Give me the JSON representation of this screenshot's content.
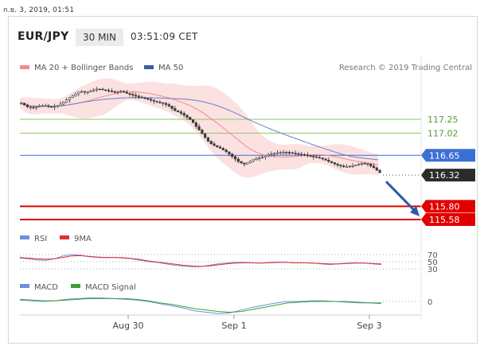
{
  "timestamp": "ก.ย. 3, 2019, 01:51",
  "header": {
    "symbol": "EUR/JPY",
    "timeframe": "30 MIN",
    "time": "03:51:09 CET"
  },
  "legend": {
    "ma20": "MA 20 + Bollinger Bands",
    "ma50": "MA 50",
    "copyright": "Research © 2019 Trading Central"
  },
  "colors": {
    "ma20": "#f28b8b",
    "band": "#fcdcdc",
    "ma50": "#6a7ec8",
    "candle": "#3a3a3a",
    "support": "#e00000",
    "resistance_green": "#8cc46b",
    "blue_level": "#3b6fd8",
    "arrow": "#2a5aa8",
    "rsi": "#6f8fd8",
    "rsi_ma": "#e03030",
    "macd": "#6f8fd8",
    "macd_signal": "#3aa035"
  },
  "chart_data": [
    {
      "type": "candlestick",
      "name": "EUR/JPY",
      "y_range": [
        115.3,
        117.9
      ],
      "candles_start": 117.52,
      "candles_path": [
        117.52,
        117.46,
        117.44,
        117.47,
        117.48,
        117.45,
        117.47,
        117.52,
        117.6,
        117.66,
        117.72,
        117.7,
        117.73,
        117.76,
        117.74,
        117.72,
        117.7,
        117.72,
        117.68,
        117.65,
        117.62,
        117.6,
        117.57,
        117.54,
        117.52,
        117.48,
        117.4,
        117.36,
        117.3,
        117.22,
        117.1,
        116.98,
        116.86,
        116.8,
        116.76,
        116.7,
        116.62,
        116.54,
        116.5,
        116.56,
        116.6,
        116.62,
        116.66,
        116.68,
        116.7,
        116.7,
        116.69,
        116.67,
        116.66,
        116.64,
        116.62,
        116.6,
        116.56,
        116.52,
        116.48,
        116.46,
        116.47,
        116.49,
        116.52,
        116.5,
        116.44,
        116.36
      ],
      "price_levels": [
        {
          "value": 117.25,
          "label": "117.25",
          "kind": "resistance"
        },
        {
          "value": 117.02,
          "label": "117.02",
          "kind": "resistance"
        },
        {
          "value": 116.65,
          "label": "116.65",
          "kind": "ma50"
        },
        {
          "value": 116.32,
          "label": "116.32",
          "kind": "last"
        },
        {
          "value": 115.8,
          "label": "115.80",
          "kind": "support"
        },
        {
          "value": 115.58,
          "label": "115.58",
          "kind": "support"
        }
      ],
      "arrow": {
        "from": 116.32,
        "to": 115.58
      },
      "x_ticks": [
        "Aug 30",
        "Sep 1",
        "Sep 3"
      ]
    },
    {
      "type": "line",
      "name": "RSI panel",
      "series": [
        {
          "name": "RSI",
          "values": [
            60,
            58,
            55,
            54,
            58,
            66,
            70,
            68,
            64,
            62,
            61,
            62,
            60,
            58,
            54,
            50,
            48,
            44,
            40,
            38,
            36,
            36,
            40,
            44,
            46,
            48,
            48,
            47,
            46,
            48,
            49,
            48,
            47,
            47,
            46,
            44,
            42,
            44,
            46,
            47,
            46,
            44,
            42
          ]
        },
        {
          "name": "9MA",
          "values": [
            62,
            60,
            58,
            57,
            58,
            62,
            66,
            67,
            65,
            63,
            62,
            62,
            61,
            59,
            56,
            52,
            49,
            46,
            43,
            40,
            38,
            37,
            38,
            41,
            44,
            46,
            47,
            47,
            46,
            47,
            48,
            48,
            47,
            47,
            46,
            45,
            44,
            44,
            45,
            46,
            46,
            45,
            44
          ]
        }
      ],
      "y_levels": [
        70,
        50,
        30
      ],
      "y_labels": [
        "70",
        "50",
        "30"
      ]
    },
    {
      "type": "line",
      "name": "MACD panel",
      "series": [
        {
          "name": "MACD",
          "values": [
            0.02,
            0.01,
            0.0,
            0.01,
            0.03,
            0.04,
            0.05,
            0.05,
            0.04,
            0.03,
            0.02,
            0.0,
            -0.03,
            -0.06,
            -0.09,
            -0.13,
            -0.15,
            -0.17,
            -0.16,
            -0.12,
            -0.08,
            -0.05,
            -0.02,
            0.0,
            0.0,
            0.01,
            0.01,
            0.0,
            -0.01,
            -0.02,
            -0.02,
            -0.03
          ]
        },
        {
          "name": "MACD Signal",
          "values": [
            0.03,
            0.02,
            0.01,
            0.01,
            0.02,
            0.03,
            0.04,
            0.04,
            0.04,
            0.04,
            0.03,
            0.01,
            -0.02,
            -0.04,
            -0.07,
            -0.1,
            -0.12,
            -0.14,
            -0.15,
            -0.14,
            -0.11,
            -0.08,
            -0.05,
            -0.02,
            -0.01,
            0.0,
            0.0,
            0.0,
            0.0,
            -0.01,
            -0.02,
            -0.02
          ]
        }
      ],
      "y_labels": [
        "0"
      ]
    }
  ],
  "rsi_legend": {
    "rsi": "RSI",
    "ma": "9MA"
  },
  "macd_legend": {
    "macd": "MACD",
    "signal": "MACD Signal"
  }
}
